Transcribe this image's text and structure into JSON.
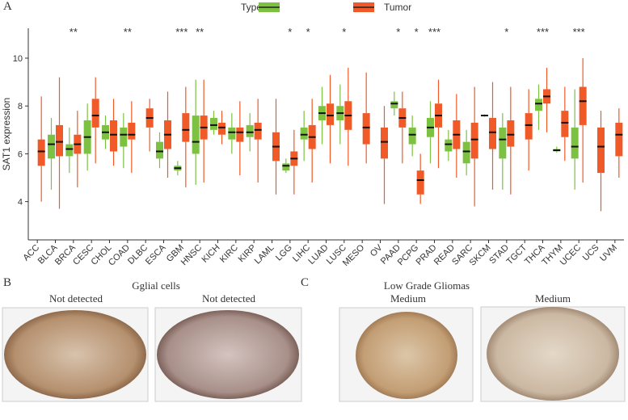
{
  "chart_data": {
    "type": "boxplot",
    "panel_label": "A",
    "legend_title": "Type",
    "ylabel": "SAT1 expression",
    "ylim": [
      2.4,
      11.25
    ],
    "yticks": [
      4,
      6,
      8,
      10
    ],
    "categories": [
      "ACC",
      "BLCA",
      "BRCA",
      "CESC",
      "CHOL",
      "COAD",
      "DLBC",
      "ESCA",
      "GBM",
      "HNSC",
      "KICH",
      "KIRC",
      "KIRP",
      "LAML",
      "LGG",
      "LIHC",
      "LUAD",
      "LUSC",
      "MESO",
      "OV",
      "PAAD",
      "PCPG",
      "PRAD",
      "READ",
      "SARC",
      "SKCM",
      "STAD",
      "TGCT",
      "THCA",
      "THYM",
      "UCEC",
      "UCS",
      "UVM"
    ],
    "annotations": [
      null,
      null,
      "**",
      null,
      null,
      "**",
      null,
      null,
      "***",
      "**",
      null,
      null,
      null,
      null,
      "*",
      "*",
      null,
      "*",
      null,
      null,
      "*",
      "*",
      "***",
      null,
      null,
      null,
      "*",
      null,
      "***",
      null,
      "***",
      null,
      null
    ],
    "series": [
      {
        "color": "#7dc142",
        "min": [
          null,
          4.5,
          5.2,
          5.3,
          6.2,
          5.4,
          null,
          5.4,
          5.1,
          4.7,
          6.8,
          6.0,
          6.1,
          null,
          5.2,
          5.7,
          6.4,
          6.4,
          null,
          null,
          7.6,
          5.9,
          5.6,
          5.7,
          5.1,
          7.55,
          4.5,
          null,
          7.0,
          6.05,
          4.5,
          null,
          null
        ],
        "q1": [
          null,
          5.8,
          5.9,
          6.0,
          6.6,
          6.3,
          null,
          5.8,
          5.3,
          6.0,
          7.0,
          6.6,
          6.7,
          null,
          5.3,
          6.6,
          7.4,
          7.4,
          null,
          null,
          7.9,
          6.4,
          6.7,
          6.1,
          5.6,
          7.58,
          5.8,
          null,
          7.8,
          6.1,
          5.8,
          null,
          null
        ],
        "median": [
          null,
          6.4,
          6.2,
          6.7,
          6.9,
          6.8,
          null,
          6.1,
          5.4,
          6.5,
          7.2,
          6.9,
          6.9,
          null,
          5.5,
          6.8,
          7.7,
          7.7,
          null,
          null,
          8.1,
          6.8,
          7.1,
          6.4,
          6.1,
          7.6,
          6.6,
          null,
          8.1,
          6.15,
          6.3,
          null,
          null
        ],
        "q3": [
          null,
          6.8,
          6.4,
          7.4,
          7.2,
          7.1,
          null,
          6.5,
          5.5,
          7.6,
          7.5,
          7.1,
          7.2,
          null,
          5.6,
          7.1,
          8.0,
          8.0,
          null,
          null,
          8.2,
          7.1,
          7.5,
          6.6,
          6.5,
          7.62,
          7.1,
          null,
          8.3,
          6.2,
          7.1,
          null,
          null
        ],
        "max": [
          null,
          7.5,
          7.1,
          8.1,
          7.6,
          7.7,
          null,
          6.9,
          5.7,
          9.1,
          7.8,
          7.7,
          7.7,
          null,
          5.8,
          7.8,
          8.8,
          8.9,
          null,
          null,
          8.6,
          7.6,
          8.2,
          7.0,
          7.0,
          7.65,
          7.7,
          null,
          8.9,
          6.3,
          8.7,
          null,
          null
        ]
      },
      {
        "name": "Tumor",
        "color": "#f05a28",
        "min": [
          4.0,
          3.7,
          4.6,
          5.6,
          5.5,
          5.2,
          6.1,
          5.0,
          4.6,
          4.8,
          6.4,
          5.1,
          4.8,
          4.3,
          4.3,
          4.8,
          5.6,
          5.5,
          5.6,
          3.9,
          5.6,
          3.9,
          5.4,
          5.0,
          3.8,
          4.5,
          4.3,
          5.3,
          6.9,
          5.7,
          4.8,
          3.6,
          5.0
        ],
        "q1": [
          5.5,
          5.9,
          6.0,
          7.1,
          6.1,
          6.6,
          7.1,
          6.2,
          6.5,
          6.6,
          6.8,
          6.5,
          6.6,
          5.7,
          5.5,
          6.2,
          7.2,
          7.0,
          6.4,
          5.8,
          7.1,
          4.3,
          7.1,
          6.2,
          5.8,
          6.2,
          6.3,
          6.6,
          8.1,
          6.7,
          7.2,
          5.2,
          5.9
        ],
        "median": [
          6.1,
          6.5,
          6.4,
          7.6,
          6.8,
          6.8,
          7.5,
          6.8,
          7.0,
          7.1,
          7.1,
          6.9,
          7.0,
          6.3,
          5.8,
          6.7,
          7.6,
          7.6,
          7.1,
          6.5,
          7.5,
          4.9,
          7.6,
          6.8,
          6.6,
          6.9,
          6.8,
          7.2,
          8.4,
          7.3,
          8.2,
          6.3,
          6.8
        ],
        "q3": [
          6.6,
          7.2,
          6.8,
          8.3,
          7.4,
          7.3,
          7.9,
          7.4,
          7.7,
          7.6,
          7.3,
          7.1,
          7.3,
          6.9,
          6.1,
          7.2,
          8.1,
          8.2,
          7.7,
          7.1,
          7.9,
          5.3,
          8.1,
          7.4,
          7.3,
          7.5,
          7.4,
          7.7,
          8.7,
          7.8,
          8.8,
          7.1,
          7.3
        ],
        "max": [
          8.4,
          9.2,
          7.8,
          9.2,
          8.3,
          8.2,
          8.3,
          8.6,
          8.8,
          9.1,
          7.8,
          8.2,
          8.3,
          8.3,
          7.0,
          8.3,
          9.3,
          9.6,
          9.4,
          8.0,
          8.6,
          6.0,
          9.1,
          8.5,
          8.8,
          9.0,
          8.8,
          8.7,
          9.6,
          8.8,
          10.0,
          7.8,
          7.9
        ]
      }
    ]
  },
  "panel_b": {
    "label": "B",
    "title": "Gglial cells",
    "captions": [
      "Not detected",
      "Not detected"
    ]
  },
  "panel_c": {
    "label": "C",
    "title": "Low Grade Gliomas",
    "captions": [
      "Medium",
      "Medium"
    ]
  }
}
